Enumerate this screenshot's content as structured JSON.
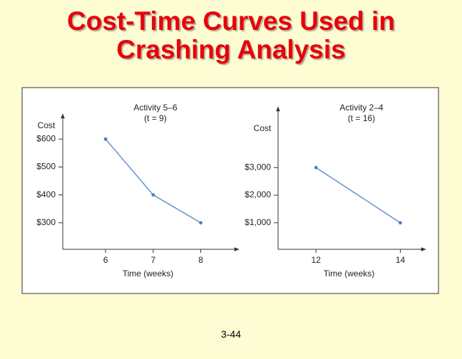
{
  "slide": {
    "title": "Cost-Time Curves Used in Crashing Analysis",
    "page": "3-44"
  },
  "chart_data": [
    {
      "type": "line",
      "title": "Activity 5–6",
      "subtitle": "(t = 9)",
      "y_label": "Cost",
      "x_label": "Time (weeks)",
      "x": [
        6,
        7,
        8
      ],
      "values": [
        600,
        400,
        300
      ],
      "color": "#6f98cc",
      "xlim": [
        5.1,
        8.8
      ],
      "xticks": [
        6,
        7,
        8
      ],
      "ylim": [
        205,
        690
      ],
      "yticks": [
        {
          "value": 300,
          "label": "$300"
        },
        {
          "value": 400,
          "label": "$400"
        },
        {
          "value": 500,
          "label": "$500"
        },
        {
          "value": 600,
          "label": "$600"
        }
      ]
    },
    {
      "type": "line",
      "title": "Activity 2–4",
      "subtitle": "(t = 16)",
      "y_label": "Cost",
      "x_label": "Time (weeks)",
      "x": [
        12,
        14
      ],
      "values": [
        3000,
        1000
      ],
      "color": "#6f98cc",
      "xlim": [
        11.1,
        14.6
      ],
      "xticks": [
        12,
        14
      ],
      "ylim": [
        40,
        5200
      ],
      "yticks": [
        {
          "value": 1000,
          "label": "$1,000"
        },
        {
          "value": 2000,
          "label": "$2,000"
        },
        {
          "value": 3000,
          "label": "$3,000"
        }
      ]
    }
  ]
}
